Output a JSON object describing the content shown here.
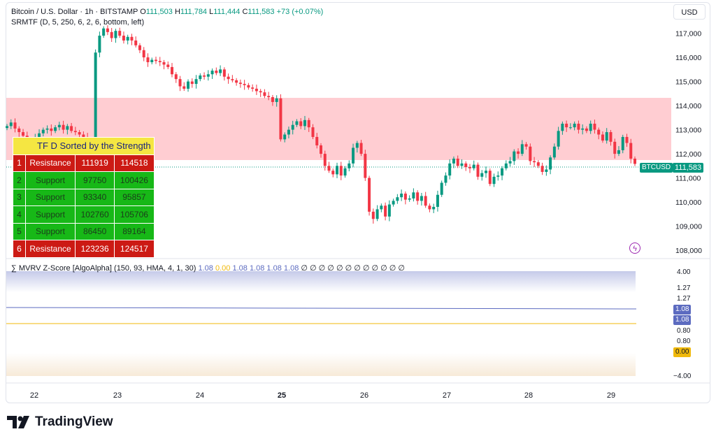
{
  "header": {
    "symbol": "Bitcoin / U.S. Dollar · 1h · BITSTAMP",
    "open_label": "O",
    "open": "111,503",
    "high_label": "H",
    "high": "111,784",
    "low_label": "L",
    "low": "111,444",
    "close_label": "C",
    "close": "111,583",
    "change": "+73 (+0.07%)",
    "indicator": "SRMTF (D, 5, 250, 6, 2, 6, bottom, left)"
  },
  "currency_button": "USD",
  "price_axis": [
    "117,000",
    "116,000",
    "115,000",
    "114,000",
    "113,000",
    "112,000",
    "111,000",
    "110,000",
    "109,000",
    "108,000"
  ],
  "price_tags": {
    "symbol": "BTCUSD",
    "price": "111,583"
  },
  "sr_table": {
    "title": "TF D Sorted by the Strength",
    "rows": [
      {
        "n": "1",
        "type": "Resistance",
        "low": "111919",
        "high": "114518"
      },
      {
        "n": "2",
        "type": "Support",
        "low": "97750",
        "high": "100426"
      },
      {
        "n": "3",
        "type": "Support",
        "low": "93340",
        "high": "95857"
      },
      {
        "n": "4",
        "type": "Support",
        "low": "102760",
        "high": "105706"
      },
      {
        "n": "5",
        "type": "Support",
        "low": "86450",
        "high": "89164"
      },
      {
        "n": "6",
        "type": "Resistance",
        "low": "123236",
        "high": "124517"
      }
    ]
  },
  "indicator2": {
    "name": "∑ MVRV Z-Score [AlgoAlpha] (150, 93, HMA, 4, 1, 30)",
    "values": [
      "1.08",
      "0.00",
      "1.08",
      "1.08",
      "1.08",
      "1.08"
    ],
    "empties": "∅ ∅ ∅ ∅ ∅ ∅ ∅ ∅ ∅ ∅ ∅ ∅",
    "axis": [
      "4.00",
      "1.27",
      "1.27",
      "0.80",
      "0.80",
      "−4.00"
    ],
    "tag_blue_1": "1.08",
    "tag_blue_2": "1.08",
    "tag_orange": "0.00"
  },
  "time_axis": [
    "22",
    "23",
    "24",
    "25",
    "26",
    "27",
    "28",
    "29"
  ],
  "brand": "TradingView",
  "colors": {
    "up": "#089981",
    "down": "#f23645",
    "resistance_zone": "#ffcdd2",
    "blue_line": "#5c6bc0",
    "orange_line": "#f0b90b"
  },
  "chart_data": {
    "type": "candlestick",
    "timeframe": "1h",
    "ylim": [
      107800,
      117800
    ],
    "resistance_zone": [
      111919,
      114518
    ],
    "last_price": 111583,
    "closes": [
      113150,
      113300,
      113050,
      112900,
      112750,
      112600,
      112500,
      112700,
      112850,
      113000,
      113050,
      112950,
      113100,
      113200,
      113000,
      113150,
      112950,
      112900,
      112800,
      112700,
      112600,
      112450,
      116200,
      116900,
      117200,
      117050,
      116800,
      117100,
      116900,
      116700,
      116850,
      116700,
      116500,
      116300,
      116000,
      115800,
      115900,
      115850,
      115800,
      115700,
      115600,
      115300,
      115100,
      114800,
      114700,
      115000,
      114900,
      115100,
      115250,
      115200,
      115300,
      115450,
      115350,
      115500,
      115200,
      115100,
      115050,
      114950,
      114900,
      114850,
      114750,
      114700,
      114600,
      114550,
      114400,
      114350,
      114150,
      114300,
      112600,
      112800,
      113000,
      113200,
      113350,
      113150,
      113400,
      113100,
      112700,
      112350,
      112000,
      111500,
      111300,
      111150,
      111500,
      111100,
      111400,
      111600,
      112250,
      112450,
      112000,
      111000,
      109600,
      109300,
      109700,
      109850,
      109400,
      109900,
      110050,
      110200,
      110350,
      110100,
      110150,
      110400,
      110050,
      110250,
      109850,
      109700,
      109800,
      110300,
      110800,
      111100,
      111600,
      111800,
      111500,
      111600,
      111450,
      111400,
      111550,
      111050,
      111200,
      111300,
      110750,
      111050,
      111100,
      111400,
      111600,
      111700,
      112100,
      112000,
      112400,
      112300,
      111700,
      111650,
      111500,
      111250,
      111350,
      111850,
      112300,
      112950,
      113250,
      113100,
      113100,
      113250,
      113000,
      113050,
      112950,
      113250,
      113000,
      112800,
      112550,
      112900,
      112500,
      112000,
      112150,
      112700,
      112450,
      111800,
      111583
    ],
    "annotations": [
      "TF D Sorted by the Strength"
    ]
  }
}
